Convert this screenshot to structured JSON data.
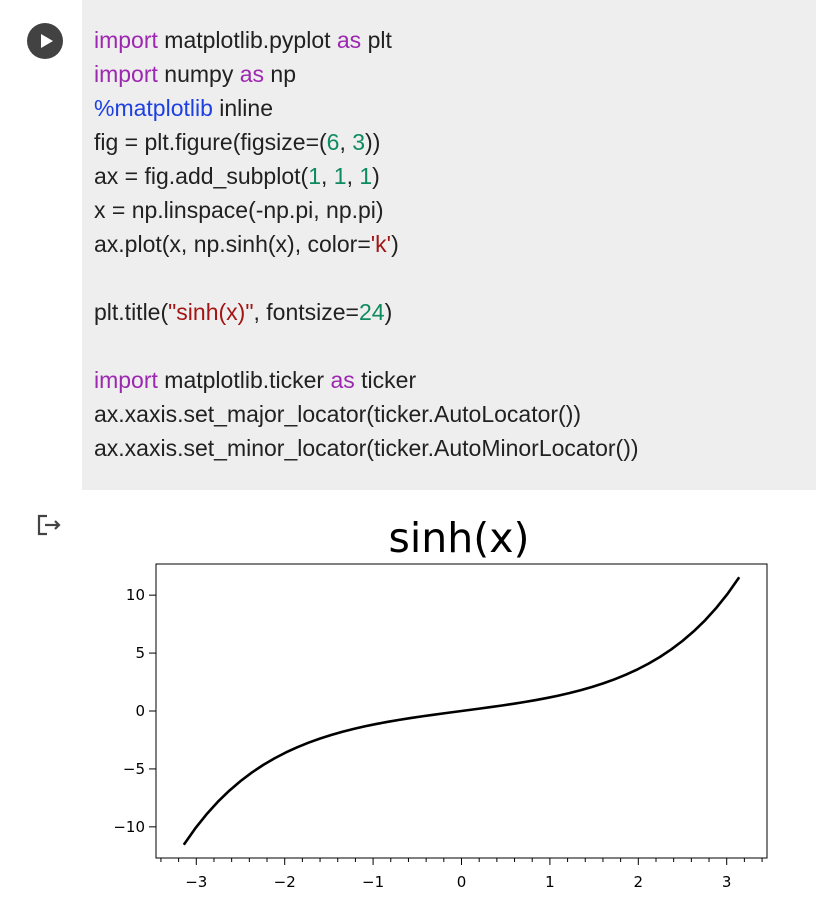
{
  "cell": {
    "run_button": "run-cell",
    "code_lines": [
      [
        {
          "t": "import",
          "c": "kw"
        },
        {
          "t": " matplotlib.pyplot ",
          "c": ""
        },
        {
          "t": "as",
          "c": "kw"
        },
        {
          "t": " plt",
          "c": ""
        }
      ],
      [
        {
          "t": "import",
          "c": "kw"
        },
        {
          "t": " numpy ",
          "c": ""
        },
        {
          "t": "as",
          "c": "kw"
        },
        {
          "t": " np",
          "c": ""
        }
      ],
      [
        {
          "t": "%matplotlib",
          "c": "mg"
        },
        {
          "t": " inline",
          "c": ""
        }
      ],
      [
        {
          "t": "fig = plt.figure(figsize=(",
          "c": ""
        },
        {
          "t": "6",
          "c": "num"
        },
        {
          "t": ", ",
          "c": ""
        },
        {
          "t": "3",
          "c": "num"
        },
        {
          "t": "))",
          "c": ""
        }
      ],
      [
        {
          "t": "ax = fig.add_subplot(",
          "c": ""
        },
        {
          "t": "1",
          "c": "num"
        },
        {
          "t": ", ",
          "c": ""
        },
        {
          "t": "1",
          "c": "num"
        },
        {
          "t": ", ",
          "c": ""
        },
        {
          "t": "1",
          "c": "num"
        },
        {
          "t": ")",
          "c": ""
        }
      ],
      [
        {
          "t": "x = np.linspace(-np.pi, np.pi)",
          "c": ""
        }
      ],
      [
        {
          "t": "ax.plot(x, np.sinh(x), color=",
          "c": ""
        },
        {
          "t": "'k'",
          "c": "str"
        },
        {
          "t": ")",
          "c": ""
        }
      ],
      [],
      [
        {
          "t": "plt.title(",
          "c": ""
        },
        {
          "t": "\"sinh(x)\"",
          "c": "str"
        },
        {
          "t": ", fontsize=",
          "c": ""
        },
        {
          "t": "24",
          "c": "num"
        },
        {
          "t": ")",
          "c": ""
        }
      ],
      [],
      [
        {
          "t": "import",
          "c": "kw"
        },
        {
          "t": " matplotlib.ticker ",
          "c": ""
        },
        {
          "t": "as",
          "c": "kw"
        },
        {
          "t": " ticker",
          "c": ""
        }
      ],
      [
        {
          "t": "ax.xaxis.set_major_locator(ticker.AutoLocator())",
          "c": ""
        }
      ],
      [
        {
          "t": "ax.xaxis.set_minor_locator(ticker.AutoMinorLocator())",
          "c": ""
        }
      ]
    ]
  },
  "output": {
    "icon": "output-redirect-icon"
  },
  "chart_data": {
    "type": "line",
    "title": "sinh(x)",
    "xlabel": "",
    "ylabel": "",
    "series": [
      {
        "color": "#000000",
        "function": "sinh(x)",
        "x_range": [
          -3.14159,
          3.14159
        ],
        "points": 50
      }
    ],
    "xlim": [
      -3.4558,
      3.4558
    ],
    "ylim": [
      -12.69,
      12.69
    ],
    "x_ticks": [
      -3,
      -2,
      -1,
      0,
      1,
      2,
      3
    ],
    "x_tick_labels": [
      "−3",
      "−2",
      "−1",
      "0",
      "1",
      "2",
      "3"
    ],
    "x_minor_ticks_per_major": 5,
    "y_ticks": [
      -10,
      -5,
      0,
      5,
      10
    ],
    "y_tick_labels": [
      "−10",
      "−5",
      "0",
      "5",
      "10"
    ],
    "grid": false
  }
}
